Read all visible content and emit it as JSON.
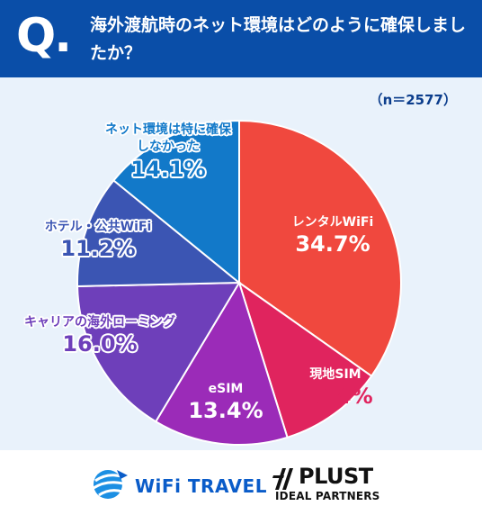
{
  "header": {
    "q_mark": "Q.",
    "question": "海外渡航時のネット環境はどのように確保しましたか？"
  },
  "sample_size": "（n＝2577）",
  "chart_data": {
    "type": "pie",
    "slices": [
      {
        "label": "レンタルWiFi",
        "value": 34.7,
        "pct": "34.7%",
        "color": "#f0483e"
      },
      {
        "label": "現地SIM",
        "value": 10.4,
        "pct": "10.4%",
        "color": "#e0245e"
      },
      {
        "label": "eSIM",
        "value": 13.4,
        "pct": "13.4%",
        "color": "#9b2bb8"
      },
      {
        "label": "キャリアの海外ローミング",
        "value": 16.0,
        "pct": "16.0%",
        "color": "#6e3fba"
      },
      {
        "label": "ホテル・公共WiFi",
        "value": 11.2,
        "pct": "11.2%",
        "color": "#3b55b3"
      },
      {
        "label": "ネット環境は特に確保しなかった",
        "value": 14.1,
        "pct": "14.1%",
        "color": "#1279c9"
      }
    ]
  },
  "logos": {
    "wifi_travel": "WiFi TRAVEL",
    "plust": "PLUST",
    "plust_sub": "IDEAL PARTNERS"
  }
}
